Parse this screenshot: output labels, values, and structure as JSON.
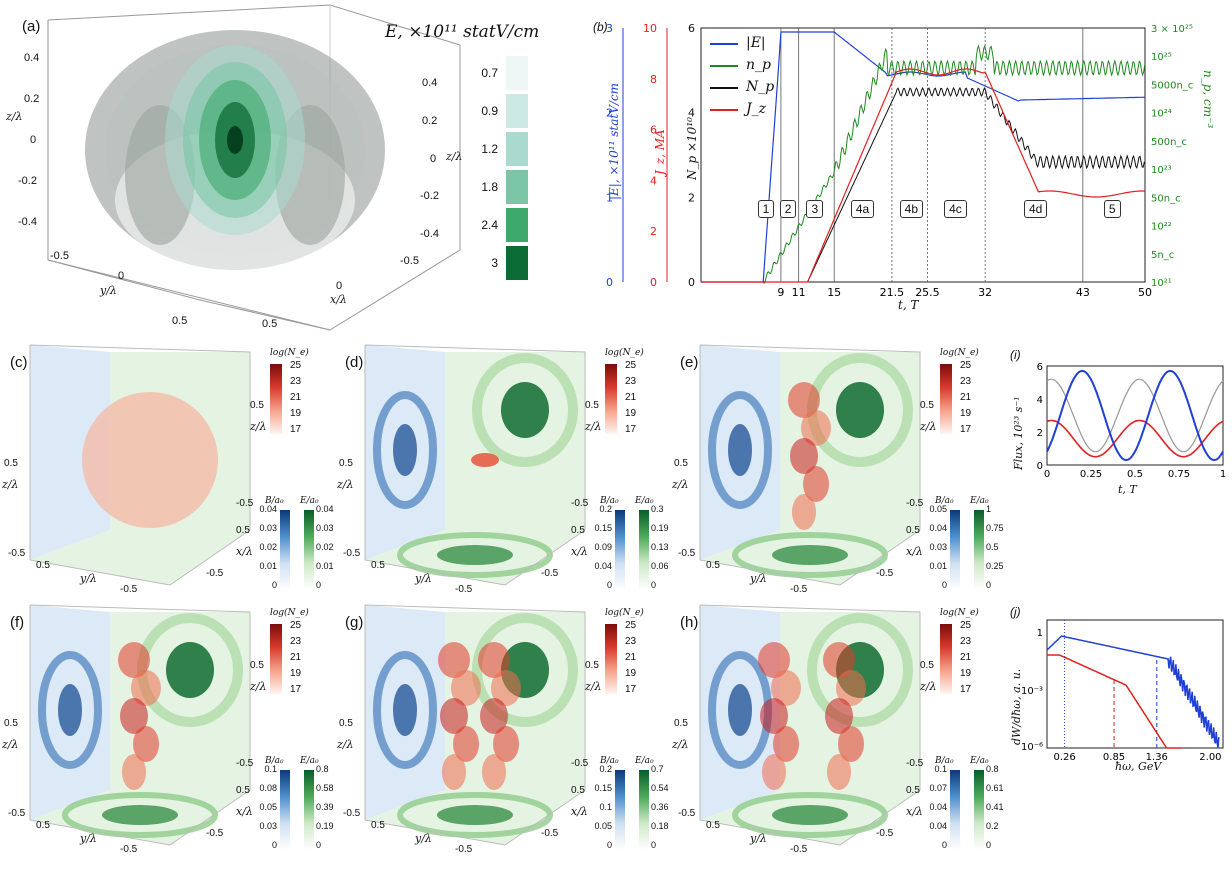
{
  "panel_a": {
    "label": "(a)",
    "colorbar_title": "E, ×10¹¹ statV/cm",
    "levels": [
      "0.7",
      "0.9",
      "1.2",
      "1.8",
      "2.4",
      "3"
    ],
    "level_colors": [
      "#eef7f6",
      "#cde9e4",
      "#a9dacd",
      "#7bc6a6",
      "#3ea96a",
      "#0d6b35"
    ],
    "z_label": "z/λ",
    "y_label": "y/λ",
    "x_label": "x/λ",
    "z_ticks": [
      "0.4",
      "0.2",
      "0",
      "-0.2",
      "-0.4"
    ],
    "z_ticks_right": [
      "0.4",
      "0.2",
      "0",
      "-0.2",
      "-0.4"
    ],
    "y_ticks": [
      "-0.5",
      "0",
      "0.5"
    ],
    "x_ticks": [
      "-0.5",
      "0",
      "0.5"
    ]
  },
  "panel_b": {
    "label": "(b)",
    "ylabels": {
      "E": "|E|, ×10¹¹ statV/cm",
      "J": "J_z, MA",
      "Np": "N_p ×10¹⁰",
      "np": "n_p, cm⁻³"
    },
    "xlabel": "t, T",
    "x_ticks": [
      "9",
      "11",
      "15",
      "21.5",
      "25.5",
      "32",
      "43",
      "50"
    ],
    "E_ticks": [
      "0",
      "1",
      "2",
      "3"
    ],
    "J_ticks": [
      "0",
      "2",
      "4",
      "6",
      "8",
      "10"
    ],
    "Np_ticks": [
      "0",
      "2",
      "4",
      "6"
    ],
    "np_ticks": [
      "10²¹",
      "5n_c",
      "10²²",
      "50n_c",
      "10²³",
      "500n_c",
      "10²⁴",
      "5000n_c",
      "10²⁵",
      "3 × 10²⁵"
    ],
    "legend": [
      "|E|",
      "n_p",
      "N_p",
      "J_z"
    ],
    "phases": [
      "1",
      "2",
      "3",
      "4a",
      "4b",
      "4c",
      "4d",
      "5"
    ],
    "colors": {
      "E": "#1f3fd6",
      "np": "#1f8a1f",
      "Np": "#111111",
      "J": "#e02020"
    }
  },
  "cube_panels": [
    {
      "label": "(c)",
      "B_ticks": [
        "0.04",
        "0.03",
        "0.02",
        "0.01",
        "0"
      ],
      "E_ticks": [
        "0.04",
        "0.03",
        "0.02",
        "0.01",
        "0"
      ]
    },
    {
      "label": "(d)",
      "B_ticks": [
        "0.2",
        "0.15",
        "0.09",
        "0.04",
        "0"
      ],
      "E_ticks": [
        "0.3",
        "0.19",
        "0.13",
        "0.06",
        "0"
      ]
    },
    {
      "label": "(e)",
      "B_ticks": [
        "0.05",
        "0.04",
        "0.03",
        "0.01",
        "0"
      ],
      "E_ticks": [
        "1",
        "0.75",
        "0.5",
        "0.25",
        "0"
      ]
    },
    {
      "label": "(f)",
      "B_ticks": [
        "0.1",
        "0.08",
        "0.05",
        "0.03",
        "0"
      ],
      "E_ticks": [
        "0.8",
        "0.58",
        "0.39",
        "0.19",
        "0"
      ]
    },
    {
      "label": "(g)",
      "B_ticks": [
        "0.2",
        "0.15",
        "0.1",
        "0.05",
        "0"
      ],
      "E_ticks": [
        "0.7",
        "0.54",
        "0.36",
        "0.18",
        "0"
      ]
    },
    {
      "label": "(h)",
      "B_ticks": [
        "0.1",
        "0.07",
        "0.04",
        "0.04",
        "0"
      ],
      "E_ticks": [
        "0.8",
        "0.61",
        "0.41",
        "0.2",
        "0"
      ]
    }
  ],
  "cube_common": {
    "logN_title": "log(N_e)",
    "logN_ticks": [
      "25",
      "23",
      "21",
      "19",
      "17"
    ],
    "B_title": "B/a₀",
    "E_title": "E/a₀",
    "z_label": "z/λ",
    "x_label": "x/λ",
    "y_label": "y/λ",
    "tick_pos": "0.5",
    "tick_neg": "-0.5"
  },
  "panel_i": {
    "label": "(i)",
    "ylabel": "Flux, 10²³ s⁻¹",
    "xlabel": "t, T",
    "x_ticks": [
      "0",
      "0.25",
      "0.5",
      "0.75",
      "1"
    ],
    "y_ticks": [
      "0",
      "2",
      "4",
      "6"
    ]
  },
  "panel_j": {
    "label": "(j)",
    "ylabel": "dW/dħω, a. u.",
    "xlabel": "ħω, GeV",
    "x_ticks": [
      "0.26",
      "0.85",
      "1.36",
      "2.00"
    ],
    "y_ticks": [
      "1",
      "10⁻³",
      "10⁻⁶"
    ]
  }
}
